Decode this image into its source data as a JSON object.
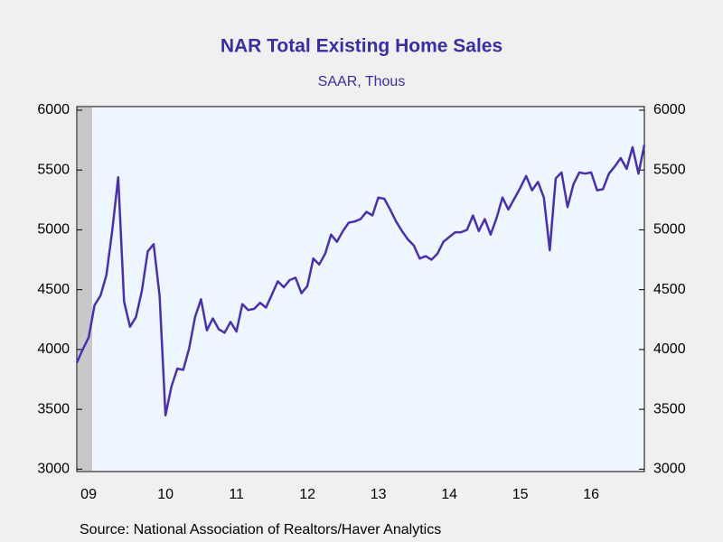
{
  "chart_data": {
    "type": "line",
    "title": "NAR Total Existing Home Sales",
    "subtitle": "SAAR, Thous",
    "source": "Source:  National Association of Realtors/Haver Analytics",
    "categories": [
      null,
      null,
      "09",
      null,
      null,
      null,
      null,
      null,
      null,
      null,
      null,
      null,
      null,
      null,
      null,
      "10",
      null,
      null,
      null,
      null,
      null,
      null,
      null,
      null,
      null,
      null,
      null,
      "11",
      null,
      null,
      null,
      null,
      null,
      null,
      null,
      null,
      null,
      null,
      null,
      "12",
      null,
      null,
      null,
      null,
      null,
      null,
      null,
      null,
      null,
      null,
      null,
      "13",
      null,
      null,
      null,
      null,
      null,
      null,
      null,
      null,
      null,
      null,
      null,
      "14",
      null,
      null,
      null,
      null,
      null,
      null,
      null,
      null,
      null,
      null,
      null,
      "15",
      null,
      null,
      null,
      null,
      null,
      null,
      null,
      null,
      null,
      null,
      null,
      "16",
      null,
      null,
      null,
      null,
      null,
      null,
      null,
      null,
      null
    ],
    "series": [
      {
        "name": "Total Existing Home Sales",
        "color": "#4a2fb5",
        "values": [
          3890,
          4000,
          4100,
          4370,
          4450,
          4620,
          5000,
          5440,
          4400,
          4190,
          4270,
          4490,
          4820,
          4880,
          4450,
          3450,
          3690,
          3840,
          3830,
          4010,
          4270,
          4420,
          4160,
          4260,
          4170,
          4140,
          4230,
          4150,
          4380,
          4330,
          4340,
          4390,
          4350,
          4460,
          4570,
          4520,
          4580,
          4600,
          4470,
          4530,
          4760,
          4710,
          4800,
          4960,
          4900,
          4990,
          5060,
          5070,
          5090,
          5150,
          5120,
          5270,
          5260,
          5170,
          5070,
          4990,
          4920,
          4870,
          4760,
          4780,
          4750,
          4800,
          4900,
          4940,
          4980,
          4980,
          5000,
          5120,
          4990,
          5090,
          4960,
          5100,
          5270,
          5170,
          5260,
          5350,
          5450,
          5330,
          5400,
          5270,
          4830,
          5430,
          5480,
          5190,
          5380,
          5480,
          5470,
          5480,
          5330,
          5340,
          5470,
          5530,
          5600,
          5510,
          5690,
          5470,
          5710
        ]
      }
    ],
    "ylim": [
      2980,
      6030
    ],
    "yticks": [
      3000,
      3500,
      4000,
      4500,
      5000,
      5500,
      6000
    ],
    "y2lim": [
      2980,
      6030
    ],
    "y2ticks": [
      3000,
      3500,
      4000,
      4500,
      5000,
      5500,
      6000
    ],
    "grid": false
  }
}
